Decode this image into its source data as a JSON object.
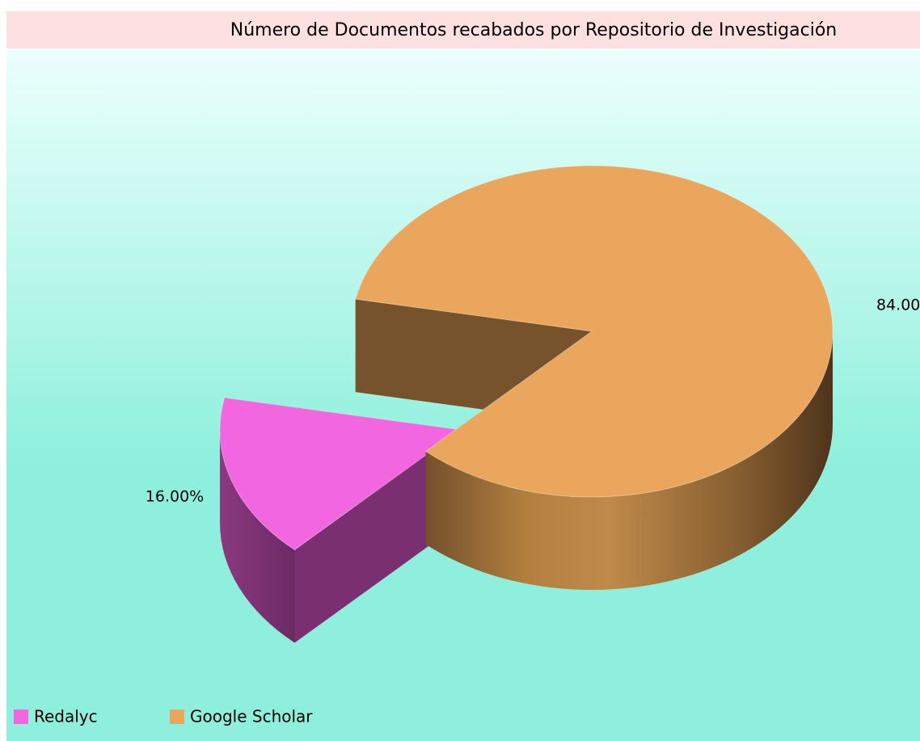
{
  "chart_data": {
    "type": "pie",
    "title": "Número de Documentos recabados por Repositorio de Investigación",
    "categories": [
      "Redalyc",
      "Google Scholar"
    ],
    "values": [
      16,
      84
    ],
    "value_labels": [
      "16.00%",
      "84.00%"
    ],
    "colors": [
      "#f266e0",
      "#eba65d"
    ],
    "legend": "bottom-left"
  }
}
